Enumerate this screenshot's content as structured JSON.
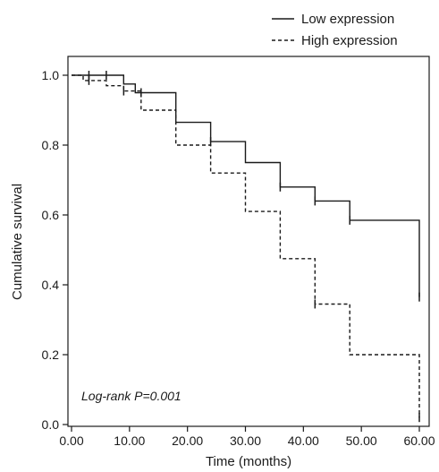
{
  "chart_data": {
    "type": "line",
    "title": "",
    "xlabel": "Time (months)",
    "ylabel": "Cumulative survival",
    "xlim": [
      0,
      62
    ],
    "ylim": [
      0,
      1.05
    ],
    "x_ticks": [
      0,
      10,
      20,
      30,
      40,
      50,
      60
    ],
    "x_tick_labels": [
      "0.00",
      "10.00",
      "20.00",
      "30.00",
      "40.00",
      "50.00",
      "60.00"
    ],
    "y_ticks": [
      0,
      0.2,
      0.4,
      0.6,
      0.8,
      1.0
    ],
    "y_tick_labels": [
      "0.0",
      "0.2",
      "0.4",
      "0.6",
      "0.8",
      "1.0"
    ],
    "grid": false,
    "legend_position": "top-right",
    "annotation": "Log-rank P=0.001",
    "series": [
      {
        "name": "Low expression",
        "style": "solid",
        "color": "#1a1a1a",
        "steps": [
          [
            0,
            1.0
          ],
          [
            9,
            0.975
          ],
          [
            11,
            0.95
          ],
          [
            18,
            0.865
          ],
          [
            24,
            0.81
          ],
          [
            30,
            0.75
          ],
          [
            36,
            0.68
          ],
          [
            42,
            0.64
          ],
          [
            48,
            0.585
          ],
          [
            60,
            0.365
          ]
        ],
        "end_x": 60,
        "censored": [
          [
            3,
            1.0
          ],
          [
            6,
            1.0
          ],
          [
            12,
            0.95
          ],
          [
            24,
            0.81
          ],
          [
            36,
            0.68
          ],
          [
            42,
            0.64
          ],
          [
            48,
            0.585
          ],
          [
            60,
            0.365
          ]
        ]
      },
      {
        "name": "High expression",
        "style": "dashed",
        "color": "#1a1a1a",
        "steps": [
          [
            0,
            1.0
          ],
          [
            2,
            0.985
          ],
          [
            6,
            0.97
          ],
          [
            9,
            0.955
          ],
          [
            12,
            0.9
          ],
          [
            18,
            0.8
          ],
          [
            24,
            0.72
          ],
          [
            30,
            0.61
          ],
          [
            36,
            0.475
          ],
          [
            42,
            0.345
          ],
          [
            48,
            0.2
          ],
          [
            60,
            0.02
          ]
        ],
        "end_x": 60,
        "censored": [
          [
            3,
            0.985
          ],
          [
            9,
            0.955
          ],
          [
            42,
            0.345
          ],
          [
            60,
            0.02
          ]
        ]
      }
    ]
  }
}
